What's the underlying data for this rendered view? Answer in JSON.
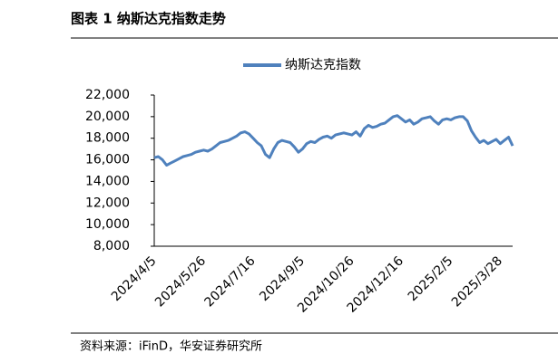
{
  "chart_data": {
    "type": "line",
    "title": "图表 1 纳斯达克指数走势",
    "source": "资料来源：iFinD，华安证券研究所",
    "categories": [
      "2024/4/5",
      null,
      null,
      null,
      null,
      null,
      null,
      null,
      null,
      null,
      null,
      null,
      "2024/5/26",
      null,
      null,
      null,
      null,
      null,
      null,
      null,
      null,
      null,
      null,
      null,
      "2024/7/16",
      null,
      null,
      null,
      null,
      null,
      null,
      null,
      null,
      null,
      null,
      null,
      "2024/9/5",
      null,
      null,
      null,
      null,
      null,
      null,
      null,
      null,
      null,
      null,
      null,
      "2024/10/26",
      null,
      null,
      null,
      null,
      null,
      null,
      null,
      null,
      null,
      null,
      null,
      "2024/12/16",
      null,
      null,
      null,
      null,
      null,
      null,
      null,
      null,
      null,
      null,
      null,
      "2025/2/5",
      null,
      null,
      null,
      null,
      null,
      null,
      null,
      null,
      null,
      null,
      null,
      "2025/3/28",
      null,
      null,
      null
    ],
    "series": [
      {
        "name": "纳斯达克指数",
        "color": "#4f81bd",
        "values": [
          16200,
          16300,
          16000,
          15500,
          15700,
          15900,
          16100,
          16300,
          16400,
          16500,
          16700,
          16800,
          16900,
          16800,
          17000,
          17300,
          17600,
          17700,
          17800,
          18000,
          18200,
          18500,
          18600,
          18400,
          18000,
          17600,
          17300,
          16500,
          16200,
          17000,
          17600,
          17800,
          17700,
          17600,
          17200,
          16700,
          17000,
          17500,
          17700,
          17600,
          17900,
          18100,
          18200,
          18000,
          18300,
          18400,
          18500,
          18400,
          18300,
          18600,
          18200,
          18900,
          19200,
          19000,
          19100,
          19300,
          19400,
          19700,
          20000,
          20100,
          19800,
          19500,
          19700,
          19300,
          19500,
          19800,
          19900,
          20000,
          19600,
          19300,
          19700,
          19800,
          19700,
          19900,
          20000,
          20000,
          19600,
          18700,
          18100,
          17600,
          17800,
          17500,
          17700,
          17900,
          17500,
          17800,
          18100,
          17300
        ]
      }
    ],
    "ylim": [
      8000,
      22000
    ],
    "yticks": [
      {
        "value": 8000,
        "label": "8,000"
      },
      {
        "value": 10000,
        "label": "10,000"
      },
      {
        "value": 12000,
        "label": "12,000"
      },
      {
        "value": 14000,
        "label": "14,000"
      },
      {
        "value": 16000,
        "label": "16,000"
      },
      {
        "value": 18000,
        "label": "18,000"
      },
      {
        "value": 20000,
        "label": "20,000"
      },
      {
        "value": 22000,
        "label": "22,000"
      }
    ],
    "legend": "top",
    "grid": false
  }
}
